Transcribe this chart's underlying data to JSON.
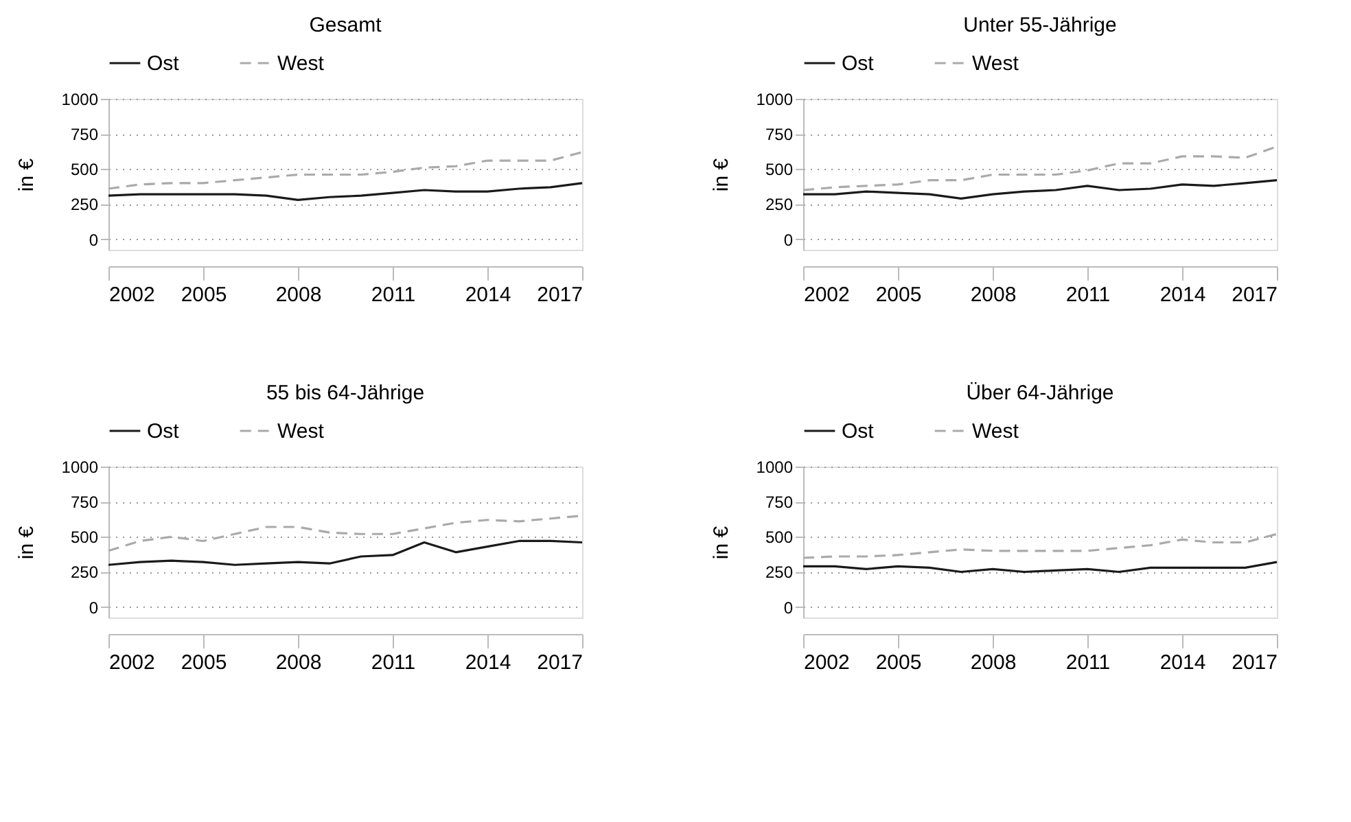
{
  "chart_data": [
    {
      "type": "line",
      "title": "Gesamt",
      "ylabel": "in €",
      "legend": "top",
      "grid": "y",
      "x": [
        2002,
        2003,
        2004,
        2005,
        2006,
        2007,
        2008,
        2009,
        2010,
        2011,
        2012,
        2013,
        2014,
        2015,
        2016,
        2017
      ],
      "series": [
        {
          "name": "Ost",
          "color": "#1a1a1a",
          "line_style": "solid",
          "values": [
            310,
            320,
            320,
            320,
            320,
            310,
            280,
            300,
            310,
            330,
            350,
            340,
            340,
            360,
            370,
            400
          ]
        },
        {
          "name": "West",
          "color": "#aaaaaa",
          "line_style": "dashed",
          "values": [
            360,
            390,
            400,
            400,
            420,
            440,
            460,
            460,
            460,
            480,
            510,
            520,
            560,
            560,
            560,
            620
          ]
        }
      ],
      "xlim": [
        2002,
        2017
      ],
      "xticks": [
        2002,
        2005,
        2008,
        2011,
        2014,
        2017
      ],
      "ylim": [
        -75,
        1000
      ],
      "yticks": [
        0,
        250,
        500,
        750,
        1000
      ]
    },
    {
      "type": "line",
      "title": "Unter 55-Jährige",
      "ylabel": "in €",
      "legend": "top",
      "grid": "y",
      "x": [
        2002,
        2003,
        2004,
        2005,
        2006,
        2007,
        2008,
        2009,
        2010,
        2011,
        2012,
        2013,
        2014,
        2015,
        2016,
        2017
      ],
      "series": [
        {
          "name": "Ost",
          "color": "#1a1a1a",
          "line_style": "solid",
          "values": [
            320,
            320,
            340,
            330,
            320,
            290,
            320,
            340,
            350,
            380,
            350,
            360,
            390,
            380,
            400,
            420
          ]
        },
        {
          "name": "West",
          "color": "#aaaaaa",
          "line_style": "dashed",
          "values": [
            350,
            370,
            380,
            390,
            420,
            420,
            460,
            460,
            460,
            490,
            540,
            540,
            590,
            590,
            580,
            660
          ]
        }
      ],
      "xlim": [
        2002,
        2017
      ],
      "xticks": [
        2002,
        2005,
        2008,
        2011,
        2014,
        2017
      ],
      "ylim": [
        -75,
        1000
      ],
      "yticks": [
        0,
        250,
        500,
        750,
        1000
      ]
    },
    {
      "type": "line",
      "title": "55 bis 64-Jährige",
      "ylabel": "in €",
      "legend": "top",
      "grid": "y",
      "x": [
        2002,
        2003,
        2004,
        2005,
        2006,
        2007,
        2008,
        2009,
        2010,
        2011,
        2012,
        2013,
        2014,
        2015,
        2016,
        2017
      ],
      "series": [
        {
          "name": "Ost",
          "color": "#1a1a1a",
          "line_style": "solid",
          "values": [
            300,
            320,
            330,
            320,
            300,
            310,
            320,
            310,
            360,
            370,
            460,
            390,
            430,
            470,
            470,
            460
          ]
        },
        {
          "name": "West",
          "color": "#aaaaaa",
          "line_style": "dashed",
          "values": [
            400,
            470,
            500,
            470,
            520,
            570,
            570,
            530,
            520,
            520,
            560,
            600,
            620,
            610,
            630,
            650
          ]
        }
      ],
      "xlim": [
        2002,
        2017
      ],
      "xticks": [
        2002,
        2005,
        2008,
        2011,
        2014,
        2017
      ],
      "ylim": [
        -75,
        1000
      ],
      "yticks": [
        0,
        250,
        500,
        750,
        1000
      ]
    },
    {
      "type": "line",
      "title": "Über 64-Jährige",
      "ylabel": "in €",
      "legend": "top",
      "grid": "y",
      "x": [
        2002,
        2003,
        2004,
        2005,
        2006,
        2007,
        2008,
        2009,
        2010,
        2011,
        2012,
        2013,
        2014,
        2015,
        2016,
        2017
      ],
      "series": [
        {
          "name": "Ost",
          "color": "#1a1a1a",
          "line_style": "solid",
          "values": [
            290,
            290,
            270,
            290,
            280,
            250,
            270,
            250,
            260,
            270,
            250,
            280,
            280,
            280,
            280,
            320
          ]
        },
        {
          "name": "West",
          "color": "#aaaaaa",
          "line_style": "dashed",
          "values": [
            350,
            360,
            360,
            370,
            390,
            410,
            400,
            400,
            400,
            400,
            420,
            440,
            480,
            460,
            460,
            520
          ]
        }
      ],
      "xlim": [
        2002,
        2017
      ],
      "xticks": [
        2002,
        2005,
        2008,
        2011,
        2014,
        2017
      ],
      "ylim": [
        -75,
        1000
      ],
      "yticks": [
        0,
        250,
        500,
        750,
        1000
      ]
    }
  ]
}
